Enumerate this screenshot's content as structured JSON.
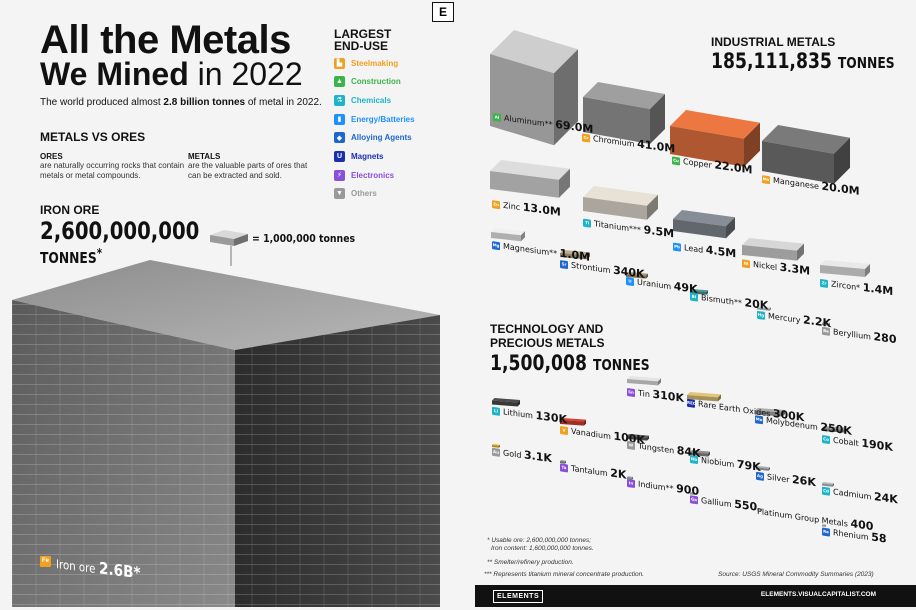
{
  "title_line1": "All the Metals",
  "title_line2_bold": "We Mined",
  "title_line2_thin": "in 2022",
  "subtitle_pre": "The world produced almost ",
  "subtitle_bold": "2.8 billion tonnes",
  "subtitle_post": " of metal in 2022.",
  "section_metals_vs_ores": "METALS VS ORES",
  "ores": {
    "heading": "ORES",
    "text": "are naturally occurring rocks that contain metals or metal compounds."
  },
  "metals": {
    "heading": "METALS",
    "text": "are the valuable parts of ores that can be extracted and sold."
  },
  "iron_ore": {
    "heading": "IRON ORE",
    "amount": "2,600,000,000",
    "unit": "TONNES",
    "asterisk": "*",
    "scale_note": "= 1,000,000 tonnes",
    "badge": "Fe",
    "label": "Iron ore",
    "value": "2.6B*"
  },
  "legend": {
    "title": "LARGEST END-USE",
    "items": [
      {
        "label": "Steelmaking",
        "color": "#f0a020",
        "icon": "factory-icon",
        "glyph": "▙"
      },
      {
        "label": "Construction",
        "color": "#3cb44b",
        "icon": "building-icon",
        "glyph": "▲"
      },
      {
        "label": "Chemicals",
        "color": "#1fb3c8",
        "icon": "flask-icon",
        "glyph": "⚗"
      },
      {
        "label": "Energy/Batteries",
        "color": "#1e90ff",
        "icon": "battery-icon",
        "glyph": "▮"
      },
      {
        "label": "Alloying Agents",
        "color": "#1e66d0",
        "icon": "alloy-icon",
        "glyph": "◆"
      },
      {
        "label": "Magnets",
        "color": "#1a2fb0",
        "icon": "magnet-icon",
        "glyph": "U"
      },
      {
        "label": "Electronics",
        "color": "#8a4fd8",
        "icon": "chip-icon",
        "glyph": "⚡"
      },
      {
        "label": "Others",
        "color": "#999999",
        "icon": "others-icon",
        "glyph": "▼"
      }
    ]
  },
  "brand_letter": "E",
  "industrial": {
    "heading": "INDUSTRIAL METALS",
    "total": "185,111,835",
    "unit": "TONNES"
  },
  "tech": {
    "heading_line1": "TECHNOLOGY AND",
    "heading_line2": "PRECIOUS METALS",
    "total": "1,500,008",
    "unit": "TONNES"
  },
  "chart_data": {
    "type": "table",
    "title": "All the Metals We Mined in 2022",
    "unit": "tonnes",
    "series": [
      {
        "name": "Iron ore",
        "symbol": "Fe",
        "value": "2.6B*",
        "tonnes": 2600000000,
        "category": "Iron ore"
      },
      {
        "name": "Aluminum**",
        "symbol": "Al",
        "value": "69.0M",
        "tonnes": 69000000,
        "category": "Industrial"
      },
      {
        "name": "Chromium",
        "symbol": "Cr",
        "value": "41.0M",
        "tonnes": 41000000,
        "category": "Industrial"
      },
      {
        "name": "Copper",
        "symbol": "Cu",
        "value": "22.0M",
        "tonnes": 22000000,
        "category": "Industrial"
      },
      {
        "name": "Manganese",
        "symbol": "Mn",
        "value": "20.0M",
        "tonnes": 20000000,
        "category": "Industrial"
      },
      {
        "name": "Zinc",
        "symbol": "Zn",
        "value": "13.0M",
        "tonnes": 13000000,
        "category": "Industrial"
      },
      {
        "name": "Titanium***",
        "symbol": "Ti",
        "value": "9.5M",
        "tonnes": 9500000,
        "category": "Industrial"
      },
      {
        "name": "Lead",
        "symbol": "Pb",
        "value": "4.5M",
        "tonnes": 4500000,
        "category": "Industrial"
      },
      {
        "name": "Nickel",
        "symbol": "Ni",
        "value": "3.3M",
        "tonnes": 3300000,
        "category": "Industrial"
      },
      {
        "name": "Zircon*",
        "symbol": "Zr",
        "value": "1.4M",
        "tonnes": 1400000,
        "category": "Industrial"
      },
      {
        "name": "Magnesium**",
        "symbol": "Mg",
        "value": "1.0M",
        "tonnes": 1000000,
        "category": "Industrial"
      },
      {
        "name": "Strontium",
        "symbol": "Sr",
        "value": "340K",
        "tonnes": 340000,
        "category": "Industrial"
      },
      {
        "name": "Uranium",
        "symbol": "U",
        "value": "49K",
        "tonnes": 49000,
        "category": "Industrial"
      },
      {
        "name": "Bismuth**",
        "symbol": "Bi",
        "value": "20K",
        "tonnes": 20000,
        "category": "Industrial"
      },
      {
        "name": "Mercury",
        "symbol": "Hg",
        "value": "2.2K",
        "tonnes": 2200,
        "category": "Industrial"
      },
      {
        "name": "Beryllium",
        "symbol": "Be",
        "value": "280",
        "tonnes": 280,
        "category": "Industrial"
      },
      {
        "name": "Tin",
        "symbol": "Sn",
        "value": "310K",
        "tonnes": 310000,
        "category": "Technology and Precious"
      },
      {
        "name": "Rare Earth Oxides",
        "symbol": "REO",
        "value": "300K",
        "tonnes": 300000,
        "category": "Technology and Precious"
      },
      {
        "name": "Molybdenum",
        "symbol": "Mo",
        "value": "250K",
        "tonnes": 250000,
        "category": "Technology and Precious"
      },
      {
        "name": "Lithium",
        "symbol": "Li",
        "value": "130K",
        "tonnes": 130000,
        "category": "Technology and Precious"
      },
      {
        "name": "Vanadium",
        "symbol": "V",
        "value": "100K",
        "tonnes": 100000,
        "category": "Technology and Precious"
      },
      {
        "name": "Cobalt",
        "symbol": "Co",
        "value": "190K",
        "tonnes": 190000,
        "category": "Technology and Precious"
      },
      {
        "name": "Tungsten",
        "symbol": "W",
        "value": "84K",
        "tonnes": 84000,
        "category": "Technology and Precious"
      },
      {
        "name": "Niobium",
        "symbol": "Nb",
        "value": "79K",
        "tonnes": 79000,
        "category": "Technology and Precious"
      },
      {
        "name": "Silver",
        "symbol": "Ag",
        "value": "26K",
        "tonnes": 26000,
        "category": "Technology and Precious"
      },
      {
        "name": "Cadmium",
        "symbol": "Cd",
        "value": "24K",
        "tonnes": 24000,
        "category": "Technology and Precious"
      },
      {
        "name": "Gold",
        "symbol": "Au",
        "value": "3.1K",
        "tonnes": 3100,
        "category": "Technology and Precious"
      },
      {
        "name": "Tantalum",
        "symbol": "Ta",
        "value": "2K",
        "tonnes": 2000,
        "category": "Technology and Precious"
      },
      {
        "name": "Indium**",
        "symbol": "In",
        "value": "900",
        "tonnes": 900,
        "category": "Technology and Precious"
      },
      {
        "name": "Gallium",
        "symbol": "Ga",
        "value": "550",
        "tonnes": 550,
        "category": "Technology and Precious"
      },
      {
        "name": "Platinum Group Metals",
        "symbol": "",
        "value": "400",
        "tonnes": 400,
        "category": "Technology and Precious"
      },
      {
        "name": "Rhenium",
        "symbol": "Re",
        "value": "58",
        "tonnes": 58,
        "category": "Technology and Precious"
      }
    ]
  },
  "footnotes": {
    "f1a": "* Usable ore: 2,600,000,000 tonnes;",
    "f1b": "Iron content: 1,600,000,000 tonnes.",
    "f2": "** Smelter/refinery production.",
    "f3": "*** Represents titanium mineral concentrate production."
  },
  "source": "Source: USGS Mineral Commodity Summaries (2023)",
  "footer": {
    "brand": "ELEMENTS",
    "url": "ELEMENTS.VISUALCAPITALIST.COM"
  }
}
